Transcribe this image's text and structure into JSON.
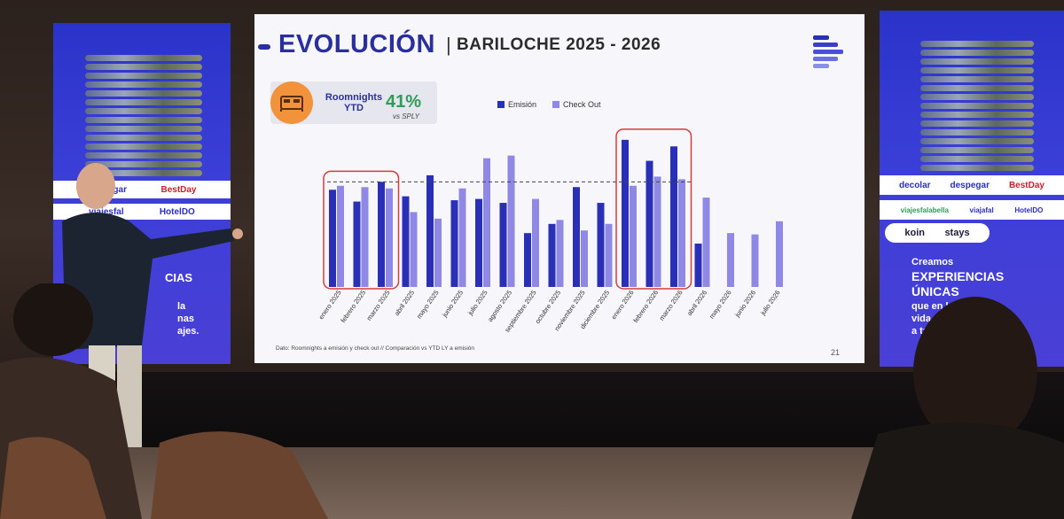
{
  "slide": {
    "title": "EVOLUCIÓN",
    "separator": "|",
    "subtitle": "BARILOCHE  2025 - 2026",
    "kpi_label": "Roomnights YTD",
    "kpi_value": "41%",
    "kpi_vs": "vs SPLY",
    "footnote": "Dato: Roomnights a emisión y check out // Comparación vs YTD LY a emisión",
    "page_number": "21"
  },
  "chart_data": {
    "type": "bar",
    "categories": [
      "enero 2025",
      "febrero 2025",
      "marzo 2025",
      "abril 2025",
      "mayo 2025",
      "junio 2025",
      "julio 2025",
      "agosto 2025",
      "septiembre 2025",
      "octubre 2025",
      "noviembre 2025",
      "diciembre 2025",
      "enero 2026",
      "febrero 2026",
      "marzo 2026",
      "abril 2026",
      "mayo 2026",
      "junio 2026",
      "julio 2026"
    ],
    "series": [
      {
        "name": "Emisión",
        "color": "#2a2fb8",
        "values": [
          74,
          65,
          80,
          69,
          85,
          66,
          67,
          64,
          41,
          48,
          76,
          64,
          112,
          96,
          107,
          33,
          null,
          null,
          null
        ]
      },
      {
        "name": "Check Out",
        "color": "#8f88e4",
        "values": [
          77,
          76,
          75,
          57,
          52,
          75,
          98,
          100,
          67,
          51,
          43,
          48,
          77,
          84,
          82,
          68,
          41,
          40,
          50
        ]
      }
    ],
    "reference_line": 80,
    "ylim": [
      0,
      120
    ],
    "legend_position": "top-center",
    "highlight_groups": [
      [
        0,
        2
      ],
      [
        12,
        14
      ]
    ],
    "grid": false,
    "xlabel": "",
    "ylabel": ""
  },
  "banners": {
    "left": {
      "brand1": "despegar",
      "brand2": "BestDay",
      "brand3": "viajesfal",
      "brand4": "HotelDO",
      "line1": "CIAS",
      "line2": "la",
      "line3": "nas",
      "line4": "ajes."
    },
    "right": {
      "brand1": "decolar",
      "brand2": "despegar",
      "brand3": "BestDay",
      "brand4": "viajesfalabella",
      "brand5": "viajafal",
      "brand6": "HotelDO",
      "brand7": "koin",
      "brand8": "stays",
      "line1": "Creamos",
      "line2": "EXPERIENCIAS",
      "line3": "ÚNICAS",
      "line4": "que en la",
      "line5": "vida as",
      "line6": "a tr ."
    }
  }
}
